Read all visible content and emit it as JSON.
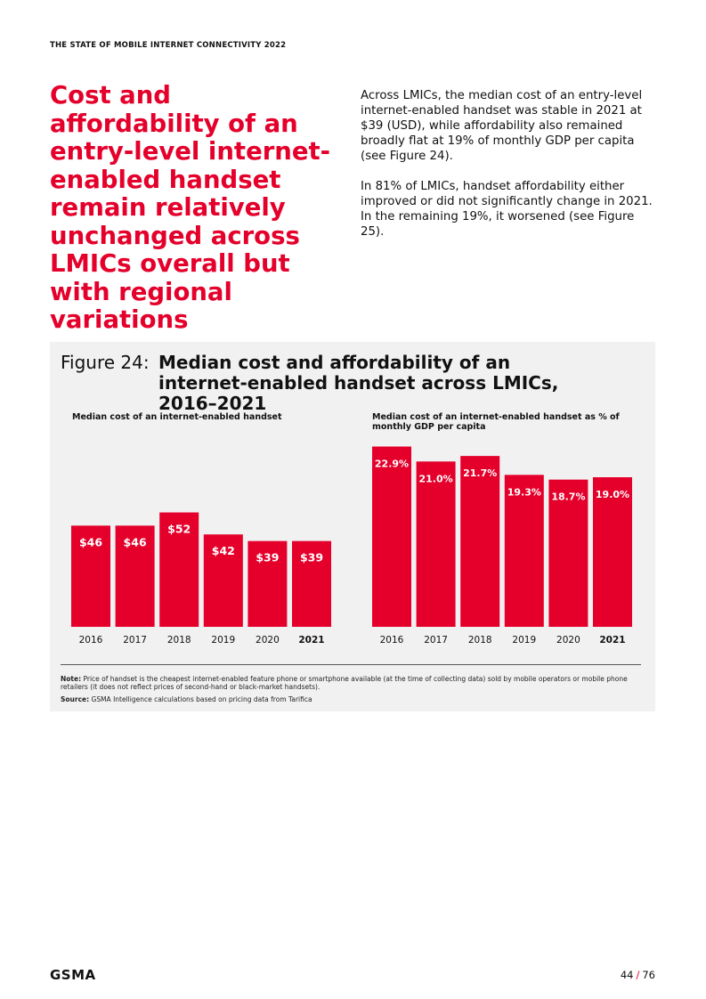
{
  "header": {
    "running_title": "THE STATE OF MOBILE INTERNET CONNECTIVITY 2022"
  },
  "headline": "Cost and affordability of an entry-level internet-enabled handset remain relatively unchanged across LMICs overall but with regional variations",
  "intro": {
    "p1": "Across LMICs, the median cost of an entry-level internet-enabled handset was stable in 2021 at $39 (USD), while affordability also remained broadly flat at 19% of monthly GDP per capita (see Figure 24).",
    "p2": "In 81% of LMICs, handset affordability either improved or did not significantly change in 2021. In the remaining 19%, it worsened (see Figure 25)."
  },
  "figure": {
    "label": "Figure 24:",
    "title": "Median cost and affordability of an internet-enabled handset across LMICs, 2016–2021",
    "note_label": "Note:",
    "note_text": " Price of handset is the cheapest internet-enabled feature phone or smartphone available (at the time of collecting data) sold by mobile operators or mobile phone retailers (it does not reflect prices of second-hand or black-market handsets).",
    "source_label": "Source:",
    "source_text": " GSMA Intelligence calculations based on pricing data from Tarifica"
  },
  "colors": {
    "accent": "#e4002b",
    "panel": "#f1f1f1"
  },
  "chart_data": [
    {
      "type": "bar",
      "title": "Median cost of an internet-enabled handset",
      "categories": [
        "2016",
        "2017",
        "2018",
        "2019",
        "2020",
        "2021"
      ],
      "values": [
        46,
        46,
        52,
        42,
        39,
        39
      ],
      "labels": [
        "$46",
        "$46",
        "$52",
        "$42",
        "$39",
        "$39"
      ],
      "ylim": [
        0,
        85
      ],
      "bold_category": "2021",
      "grid": false
    },
    {
      "type": "bar",
      "title": "Median cost of an internet-enabled handset as % of monthly GDP per capita",
      "categories": [
        "2016",
        "2017",
        "2018",
        "2019",
        "2020",
        "2021"
      ],
      "values": [
        22.9,
        21.0,
        21.7,
        19.3,
        18.7,
        19.0
      ],
      "labels": [
        "22.9%",
        "21.0%",
        "21.7%",
        "19.3%",
        "18.7%",
        "19.0%"
      ],
      "ylim": [
        0,
        23.75
      ],
      "bold_category": "2021",
      "grid": false
    }
  ],
  "footer": {
    "logo": "GSMA",
    "page": "44",
    "total": "76",
    "separator": "/"
  }
}
